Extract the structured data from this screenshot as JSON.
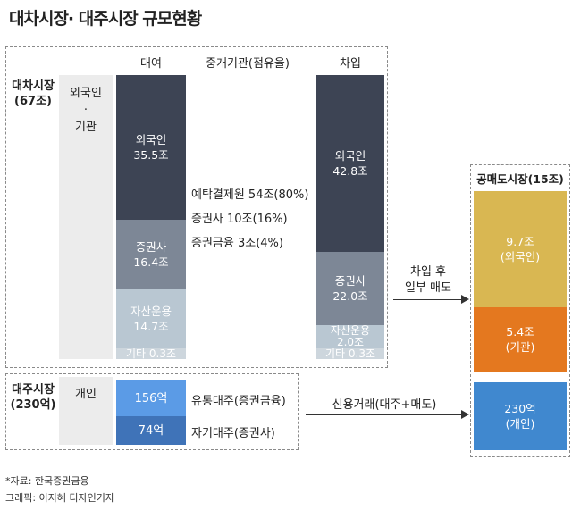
{
  "title": "대차시장· 대주시장 규모현황",
  "lending_market": {
    "label_line1": "대차시장",
    "label_line2": "(67조)",
    "foreign_inst_line1": "외국인",
    "foreign_inst_line2": "·",
    "foreign_inst_line3": "기관",
    "col_lend": "대여",
    "col_intermediary": "중개기관(점유율)",
    "col_borrow": "차입",
    "lend_bar": {
      "foreign_label": "외국인",
      "foreign_value": "35.5조",
      "securities_label": "증권사",
      "securities_value": "16.4조",
      "asset_label": "자산운용",
      "asset_value": "14.7조",
      "other": "기타 0.3조"
    },
    "intermediaries": [
      "예탁결제원 54조(80%)",
      "증권사 10조(16%)",
      "증권금융 3조(4%)"
    ],
    "borrow_bar": {
      "foreign_label": "외국인",
      "foreign_value": "42.8조",
      "securities_label": "증권사",
      "securities_value": "22.0조",
      "asset_label": "자산운용",
      "asset_value": "2.0조",
      "other": "기타 0.3조"
    },
    "arrow_line1": "차입 후",
    "arrow_line2": "일부 매도"
  },
  "borrowing_market": {
    "label_line1": "대주시장",
    "label_line2": "(230억)",
    "individual": "개인",
    "circulating": "156억",
    "own": "74억",
    "circulating_desc": "유통대주(증권금융)",
    "own_desc": "자기대주(증권사)",
    "arrow_label": "신용거래(대주+매도)"
  },
  "short_market": {
    "label": "공매도시장(15조)",
    "foreign_value": "9.7조",
    "foreign_label": "(외국인)",
    "inst_value": "5.4조",
    "inst_label": "(기관)",
    "individual_value": "230억",
    "individual_label": "(개인)"
  },
  "source": "*자료: 한국증권금융",
  "credit": "그래픽: 이지혜 디자인기자",
  "colors": {
    "dark": "#3d4454",
    "mid": "#7d8796",
    "light": "#b9c7d2",
    "lighter": "#cdd6dd",
    "blue_light": "#5b9be6",
    "blue_dark": "#3f73b8",
    "gold": "#d9b752",
    "orange": "#e4781f",
    "blue_individual": "#4088cf"
  }
}
